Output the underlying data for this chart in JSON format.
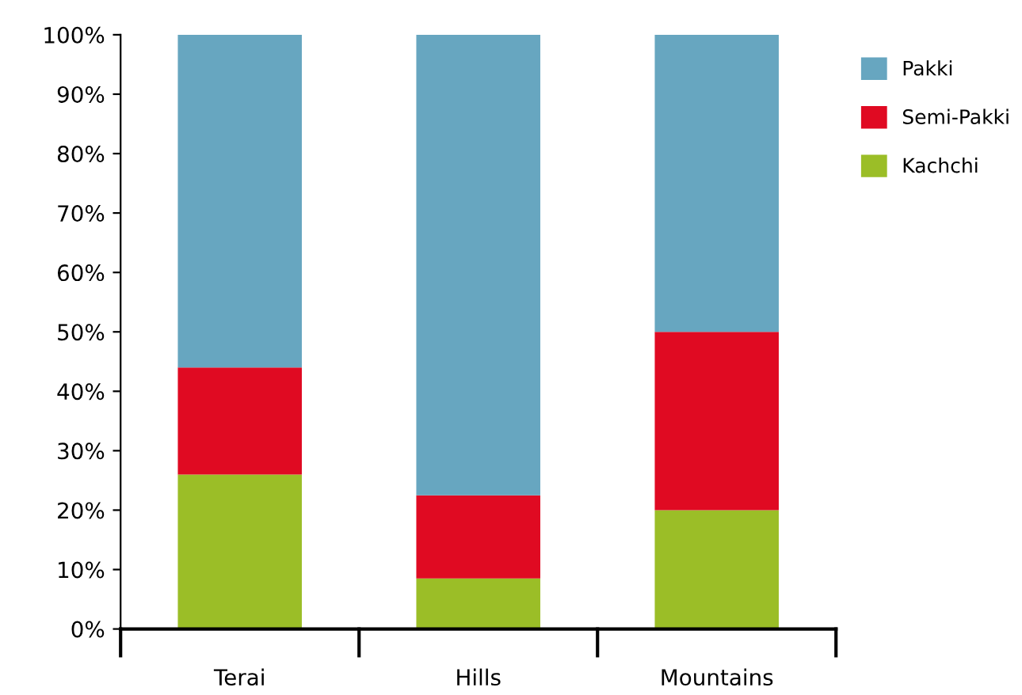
{
  "chart_data": {
    "type": "bar",
    "stacked": true,
    "categories": [
      "Terai",
      "Hills",
      "Mountains"
    ],
    "series": [
      {
        "name": "Kachchi",
        "color": "#9bbe27",
        "values": [
          26,
          8.5,
          20
        ]
      },
      {
        "name": "Semi-Pakki",
        "color": "#e00a22",
        "values": [
          18,
          14,
          30
        ]
      },
      {
        "name": "Pakki",
        "color": "#67a6c0",
        "values": [
          56,
          77.5,
          50
        ]
      }
    ],
    "ylim": [
      0,
      100
    ],
    "yticks": [
      {
        "value": 0,
        "label": "0%"
      },
      {
        "value": 10,
        "label": "10%"
      },
      {
        "value": 20,
        "label": "20%"
      },
      {
        "value": 30,
        "label": "30%"
      },
      {
        "value": 40,
        "label": "40%"
      },
      {
        "value": 50,
        "label": "50%"
      },
      {
        "value": 60,
        "label": "60%"
      },
      {
        "value": 70,
        "label": "70%"
      },
      {
        "value": 80,
        "label": "80%"
      },
      {
        "value": 90,
        "label": "90%"
      },
      {
        "value": 100,
        "label": "100%"
      }
    ],
    "grid": false,
    "legend": "right"
  }
}
